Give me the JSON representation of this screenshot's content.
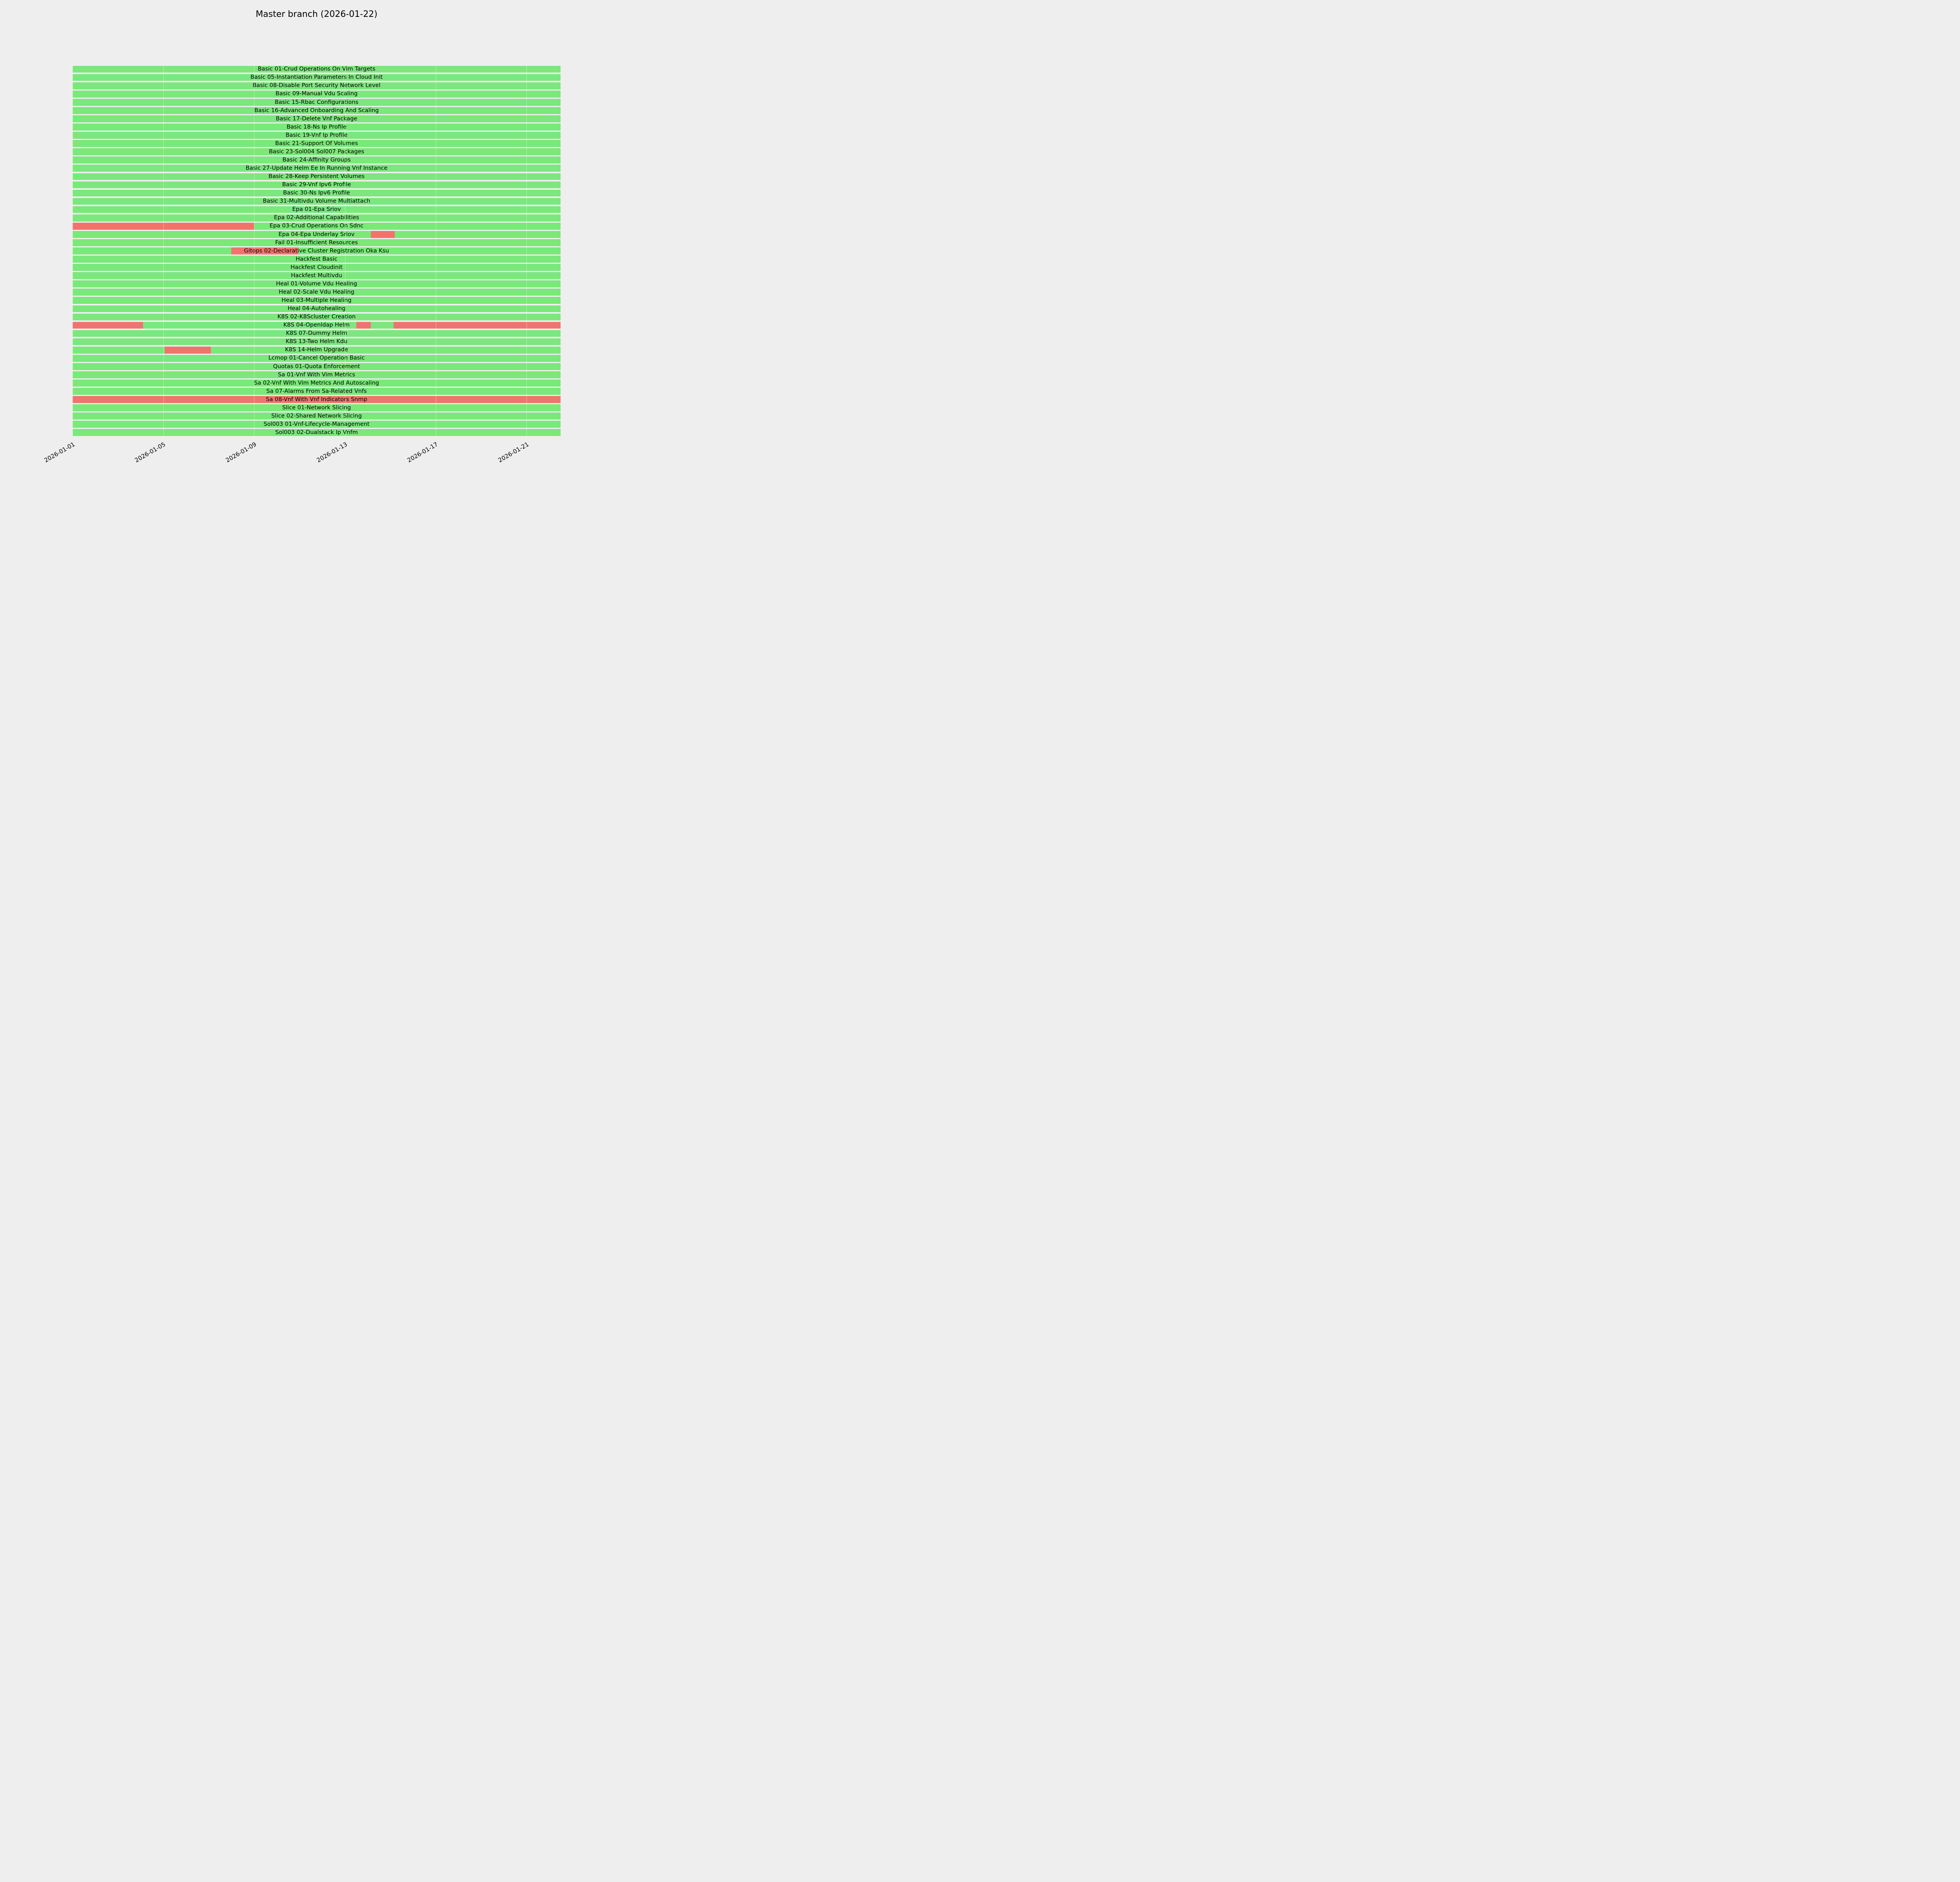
{
  "page": {
    "background": "#eeeeee"
  },
  "chart_data": {
    "type": "bar",
    "subtype": "horizontal-status-timeline",
    "title": "Master branch (2026-01-22)",
    "legend": null,
    "grid": "faint vertical gridlines at x ticks",
    "status_colors": {
      "pass": "#7ae87a",
      "fail": "#f2736e"
    },
    "x_axis": {
      "start": "2026-01-01",
      "end": "2026-01-22",
      "span_days": 21.5,
      "tick_labels": [
        "2026-01-01",
        "2026-01-05",
        "2026-01-09",
        "2026-01-13",
        "2026-01-17",
        "2026-01-21"
      ],
      "tick_days": [
        0,
        4,
        8,
        12,
        16,
        20
      ],
      "tick_rotation_deg": 30
    },
    "rows": [
      {
        "label": "Basic 01-Crud Operations On Vim Targets",
        "fail_segments_days": []
      },
      {
        "label": "Basic 05-Instantiation Parameters In Cloud Init",
        "fail_segments_days": []
      },
      {
        "label": "Basic 08-Disable Port Security Network Level",
        "fail_segments_days": []
      },
      {
        "label": "Basic 09-Manual Vdu Scaling",
        "fail_segments_days": []
      },
      {
        "label": "Basic 15-Rbac Configurations",
        "fail_segments_days": []
      },
      {
        "label": "Basic 16-Advanced Onboarding And Scaling",
        "fail_segments_days": []
      },
      {
        "label": "Basic 17-Delete Vnf Package",
        "fail_segments_days": []
      },
      {
        "label": "Basic 18-Ns Ip Profile",
        "fail_segments_days": []
      },
      {
        "label": "Basic 19-Vnf Ip Profile",
        "fail_segments_days": []
      },
      {
        "label": "Basic 21-Support Of Volumes",
        "fail_segments_days": []
      },
      {
        "label": "Basic 23-Sol004 Sol007 Packages",
        "fail_segments_days": []
      },
      {
        "label": "Basic 24-Affinity Groups",
        "fail_segments_days": []
      },
      {
        "label": "Basic 27-Update Helm Ee In Running Vnf Instance",
        "fail_segments_days": []
      },
      {
        "label": "Basic 28-Keep Persistent Volumes",
        "fail_segments_days": []
      },
      {
        "label": "Basic 29-Vnf Ipv6 Profile",
        "fail_segments_days": []
      },
      {
        "label": "Basic 30-Ns Ipv6 Profile",
        "fail_segments_days": []
      },
      {
        "label": "Basic 31-Multivdu Volume Multiattach",
        "fail_segments_days": []
      },
      {
        "label": "Epa 01-Epa Sriov",
        "fail_segments_days": []
      },
      {
        "label": "Epa 02-Additional Capabilities",
        "fail_segments_days": []
      },
      {
        "label": "Epa 03-Crud Operations On Sdnc",
        "fail_segments_days": [
          [
            0,
            8.0
          ]
        ]
      },
      {
        "label": "Epa 04-Epa Underlay Sriov",
        "fail_segments_days": [
          [
            13.15,
            14.2
          ]
        ]
      },
      {
        "label": "Fail 01-Insufficient Resources",
        "fail_segments_days": []
      },
      {
        "label": "Gitops 02-Declarative Cluster Registration Oka Ksu",
        "fail_segments_days": [
          [
            7.0,
            9.95
          ]
        ]
      },
      {
        "label": "Hackfest Basic",
        "fail_segments_days": []
      },
      {
        "label": "Hackfest Cloudinit",
        "fail_segments_days": []
      },
      {
        "label": "Hackfest Multivdu",
        "fail_segments_days": []
      },
      {
        "label": "Heal 01-Volume Vdu Healing",
        "fail_segments_days": []
      },
      {
        "label": "Heal 02-Scale Vdu Healing",
        "fail_segments_days": []
      },
      {
        "label": "Heal 03-Multiple Healing",
        "fail_segments_days": []
      },
      {
        "label": "Heal 04-Autohealing",
        "fail_segments_days": []
      },
      {
        "label": "K8S 02-K8Scluster Creation",
        "fail_segments_days": []
      },
      {
        "label": "K8S 04-Openldap Helm",
        "fail_segments_days": [
          [
            0,
            3.1
          ],
          [
            12.5,
            13.15
          ],
          [
            14.15,
            21.5
          ]
        ]
      },
      {
        "label": "K8S 07-Dummy Helm",
        "fail_segments_days": []
      },
      {
        "label": "K8S 13-Two Helm Kdu",
        "fail_segments_days": []
      },
      {
        "label": "K8S 14-Helm Upgrade",
        "fail_segments_days": [
          [
            4.05,
            6.1
          ]
        ]
      },
      {
        "label": "Lcmop 01-Cancel Operation Basic",
        "fail_segments_days": []
      },
      {
        "label": "Quotas 01-Quota Enforcement",
        "fail_segments_days": []
      },
      {
        "label": "Sa 01-Vnf With Vim Metrics",
        "fail_segments_days": []
      },
      {
        "label": "Sa 02-Vnf With Vim Metrics And Autoscaling",
        "fail_segments_days": []
      },
      {
        "label": "Sa 07-Alarms From Sa-Related Vnfs",
        "fail_segments_days": []
      },
      {
        "label": "Sa 08-Vnf With Vnf Indicators Snmp",
        "fail_segments_days": [
          [
            0,
            21.5
          ]
        ]
      },
      {
        "label": "Slice 01-Network Slicing",
        "fail_segments_days": []
      },
      {
        "label": "Slice 02-Shared Network Slicing",
        "fail_segments_days": []
      },
      {
        "label": "Sol003 01-Vnf-Lifecycle-Management",
        "fail_segments_days": []
      },
      {
        "label": "Sol003 02-Dualstack Ip Vnfm",
        "fail_segments_days": []
      }
    ]
  }
}
